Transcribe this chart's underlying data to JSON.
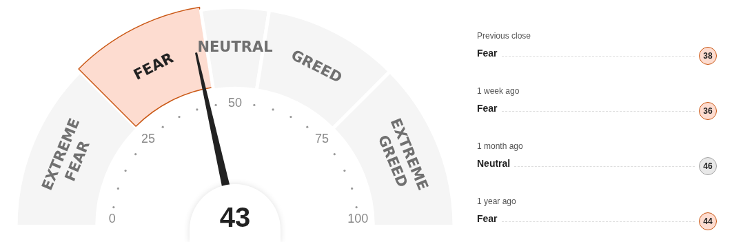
{
  "chart_data": [
    {
      "type": "donut",
      "categories": [
        "EXTREME\nFEAR",
        "FEAR",
        "NEUTRAL",
        "GREED",
        "EXTREME\nGREED"
      ],
      "values": [
        25,
        20,
        10,
        20,
        25
      ],
      "colors": [
        "#f5f5f5",
        "#fddcd0",
        "#f5f5f5",
        "#f5f5f5",
        "#f5f5f5"
      ],
      "needle": "FEAR",
      "annotations": [
        "43",
        "0",
        "25",
        "50",
        "75",
        "100"
      ]
    },
    {
      "type": "other",
      "annotations": [
        "Previous close",
        "Fear",
        "38",
        "1 week ago",
        "Fear",
        "36",
        "1 month ago",
        "Neutral",
        "46",
        "1 year ago",
        "Fear",
        "44"
      ],
      "colors": [
        "#fddcd0",
        "#fddcd0",
        "#e8e8e8",
        "#fddcd0"
      ]
    }
  ]
}
